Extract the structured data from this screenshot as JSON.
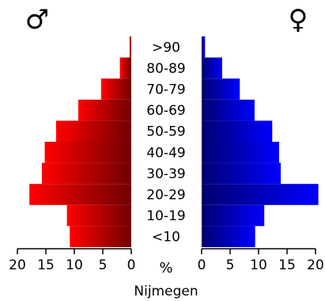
{
  "chart_data": {
    "type": "bar",
    "orientation": "horizontal-population-pyramid",
    "title": "",
    "xlabel": "Nijmegen",
    "unit": "%",
    "male_symbol": "♂",
    "female_symbol": "♀",
    "categories": [
      ">90",
      "80-89",
      "70-79",
      "60-69",
      "50-59",
      "40-49",
      "30-39",
      "20-29",
      "10-19",
      "<10"
    ],
    "series": [
      {
        "name": "♂",
        "color": "#e00000",
        "values": [
          0.3,
          2.0,
          5.3,
          9.3,
          13.2,
          15.2,
          15.7,
          17.9,
          11.3,
          10.8
        ]
      },
      {
        "name": "♀",
        "color": "#0000e0",
        "values": [
          0.6,
          3.6,
          6.7,
          9.3,
          12.4,
          13.6,
          13.9,
          20.5,
          11.0,
          9.4
        ]
      }
    ],
    "xlim": [
      0,
      20
    ],
    "tick_values": [
      0,
      5,
      10,
      15,
      20
    ],
    "tick_labels_left": [
      "0",
      "5",
      "10",
      "15",
      "20"
    ],
    "tick_labels_right": [
      "0",
      "5",
      "10",
      "15",
      "20"
    ]
  }
}
